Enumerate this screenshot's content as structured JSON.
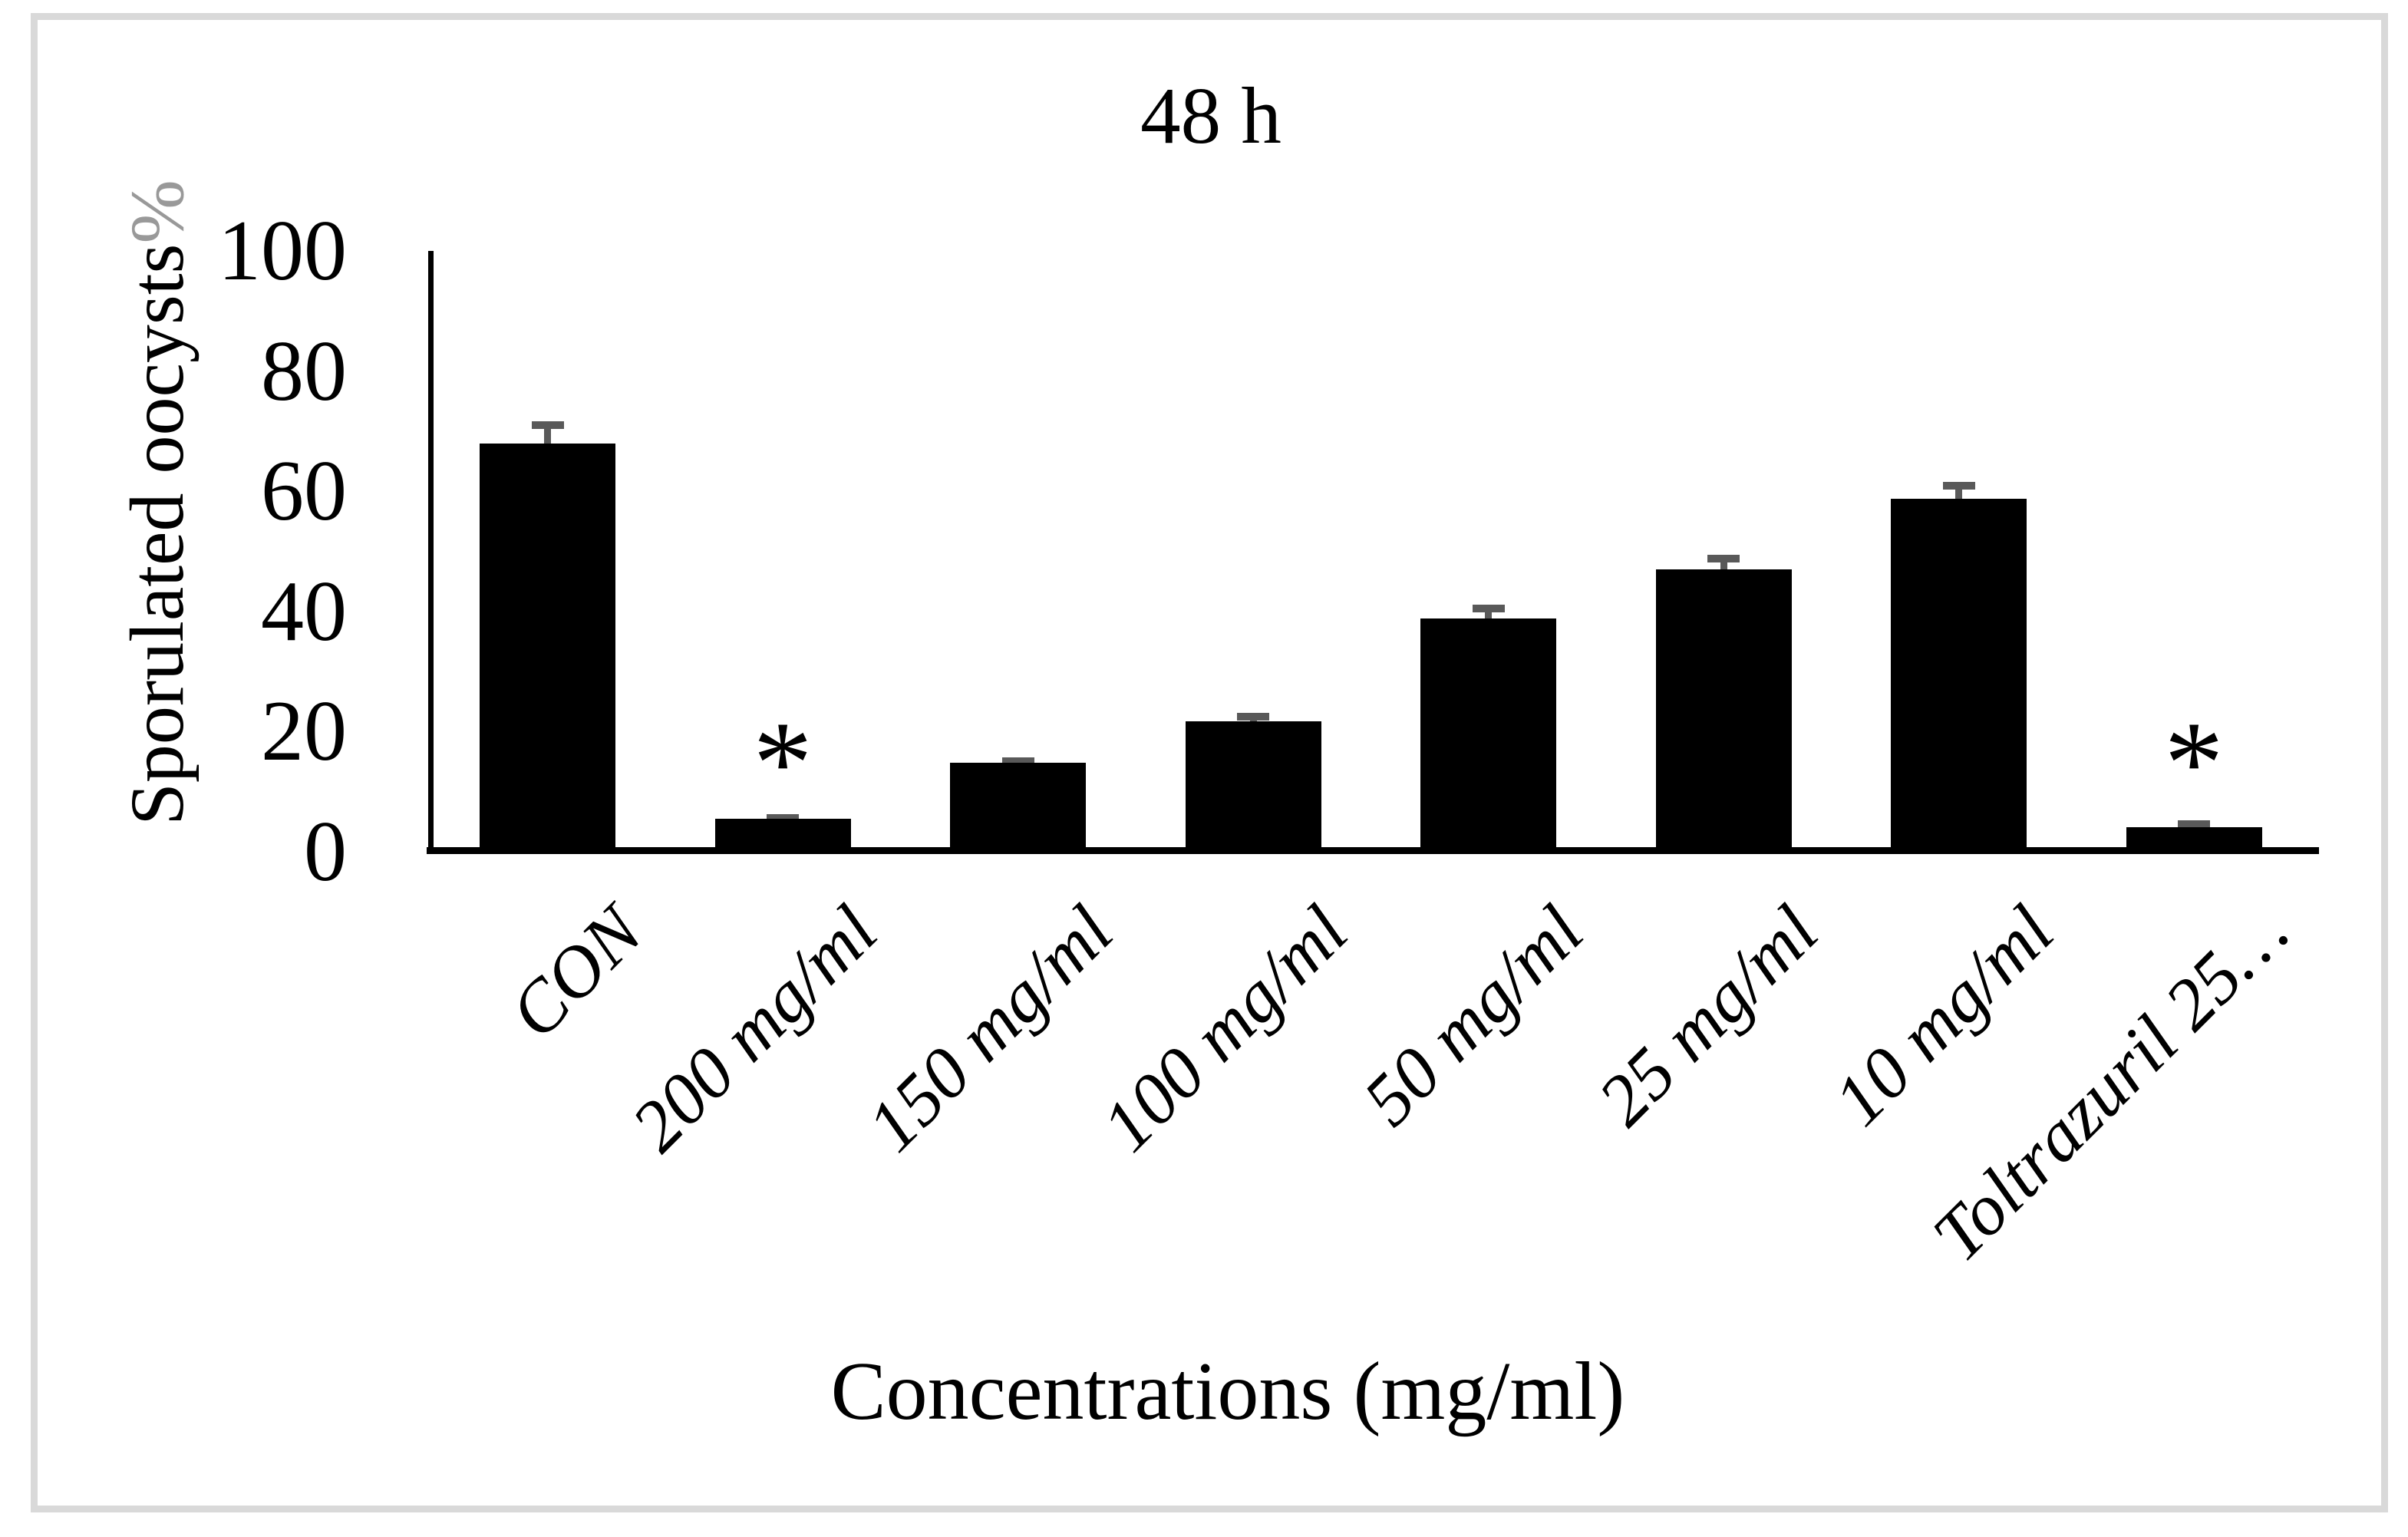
{
  "chart_data": {
    "type": "bar",
    "title": "48 h",
    "xlabel": "Concentrations (mg/ml)",
    "ylabel": "Sporulated oocysts",
    "ylabel_suffix": "%",
    "ylim": [
      0,
      100
    ],
    "ytick_interval": 20,
    "yticks": [
      100,
      80,
      60,
      40,
      20,
      0
    ],
    "grid": false,
    "legend": null,
    "categories": [
      "CON",
      "200 mg/ml",
      "150 mg/ml",
      "100 mg/ml",
      "50 mg/ml",
      "25 mg/ml",
      "10 mg/ml",
      "Toltrazuril 25…"
    ],
    "values": [
      67.9,
      5.5,
      14.8,
      21.7,
      38.8,
      47.0,
      58.8,
      4.1
    ],
    "error_bars_upper": [
      3.7,
      0.7,
      0.9,
      1.4,
      2.3,
      2.4,
      2.8,
      1.1
    ],
    "significant": [
      false,
      true,
      false,
      false,
      false,
      false,
      false,
      true
    ],
    "significance_marker": "*",
    "colors": {
      "bar": "#000000",
      "error_bar": "#595959",
      "axis": "#000000",
      "ylabel_suffix_color": "#999999",
      "figure_border": "#d9d9d9",
      "background": "#ffffff"
    }
  }
}
